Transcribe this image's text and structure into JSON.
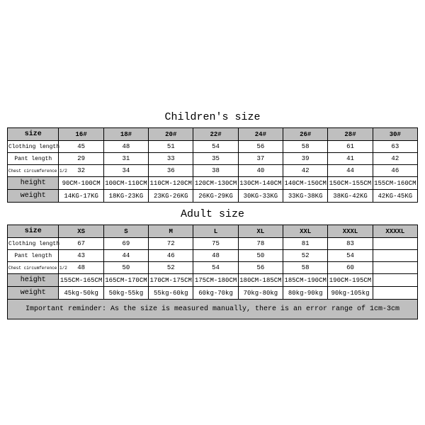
{
  "children": {
    "title": "Children's size",
    "row_labels": [
      "size",
      "Clothing length",
      "Pant length",
      "Chest circumference 1/2",
      "height",
      "weight"
    ],
    "cols": [
      "16#",
      "18#",
      "20#",
      "22#",
      "24#",
      "26#",
      "28#",
      "30#"
    ],
    "clothing_length": [
      "45",
      "48",
      "51",
      "54",
      "56",
      "58",
      "61",
      "63"
    ],
    "pant_length": [
      "29",
      "31",
      "33",
      "35",
      "37",
      "39",
      "41",
      "42"
    ],
    "chest": [
      "32",
      "34",
      "36",
      "38",
      "40",
      "42",
      "44",
      "46"
    ],
    "height_row": [
      "90CM-100CM",
      "100CM-110CM",
      "110CM-120CM",
      "120CM-130CM",
      "130CM-140CM",
      "140CM-150CM",
      "150CM-155CM",
      "155CM-160CM"
    ],
    "weight_row": [
      "14KG-17KG",
      "18KG-23KG",
      "23KG-26KG",
      "26KG-29KG",
      "30KG-33KG",
      "33KG-38KG",
      "38KG-42KG",
      "42KG-45KG"
    ]
  },
  "adult": {
    "title": "Adult size",
    "row_labels": [
      "size",
      "Clothing length",
      "Pant length",
      "Chest circumference 1/2",
      "height",
      "weight"
    ],
    "cols": [
      "XS",
      "S",
      "M",
      "L",
      "XL",
      "XXL",
      "XXXL",
      "XXXXL"
    ],
    "clothing_length": [
      "67",
      "69",
      "72",
      "75",
      "78",
      "81",
      "83",
      ""
    ],
    "pant_length": [
      "43",
      "44",
      "46",
      "48",
      "50",
      "52",
      "54",
      ""
    ],
    "chest": [
      "48",
      "50",
      "52",
      "54",
      "56",
      "58",
      "60",
      ""
    ],
    "height_row": [
      "155CM-165CM",
      "165CM-170CM",
      "170CM-175CM",
      "175CM-180CM",
      "180CM-185CM",
      "185CM-190CM",
      "190CM-195CM",
      ""
    ],
    "weight_row": [
      "45kg-50kg",
      "50kg-55kg",
      "55kg-60kg",
      "60kg-70kg",
      "70kg-80kg",
      "80kg-90kg",
      "90kg-105kg",
      ""
    ]
  },
  "reminder": "Important reminder: As the size is measured manually, there is an error range of 1cm-3cm",
  "style": {
    "header_bg": "#bfbfbf",
    "border_color": "#000000",
    "font_family": "Courier New, monospace",
    "title_fontsize": 15,
    "cell_fontsize": 9
  }
}
